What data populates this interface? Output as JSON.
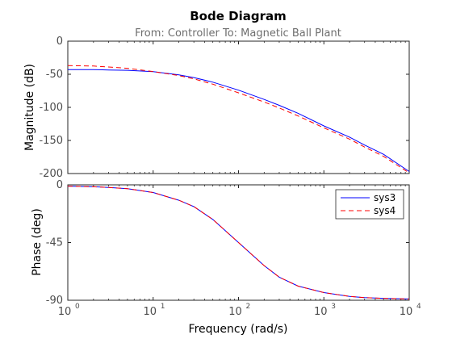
{
  "chart_data": {
    "type": "line",
    "title": "Bode Diagram",
    "subtitle": "From: Controller  To: Magnetic Ball Plant",
    "xlabel": "Frequency  (rad/s)",
    "xscale": "log",
    "xlim": [
      1,
      10000
    ],
    "x_ticks": [
      {
        "base": "10",
        "exp": "0"
      },
      {
        "base": "10",
        "exp": "1"
      },
      {
        "base": "10",
        "exp": "2"
      },
      {
        "base": "10",
        "exp": "3"
      },
      {
        "base": "10",
        "exp": "4"
      }
    ],
    "magnitude": {
      "ylabel": "Magnitude (dB)",
      "ylim": [
        -200,
        0
      ],
      "yticks": [
        "0",
        "-50",
        "-100",
        "-150",
        "-200"
      ],
      "series": [
        {
          "name": "sys3",
          "color": "#0000ff",
          "style": "solid",
          "x": [
            1,
            2,
            3,
            5,
            10,
            20,
            30,
            50,
            100,
            200,
            300,
            500,
            1000,
            2000,
            3000,
            5000,
            10000
          ],
          "y": [
            -43,
            -43,
            -43.5,
            -44,
            -46,
            -51,
            -55,
            -62,
            -74,
            -88,
            -97,
            -109,
            -128,
            -145,
            -157,
            -171,
            -197
          ]
        },
        {
          "name": "sys4",
          "color": "#ff0000",
          "style": "dashed",
          "x": [
            1,
            2,
            3,
            5,
            10,
            20,
            30,
            50,
            100,
            200,
            300,
            500,
            1000,
            2000,
            3000,
            5000,
            10000
          ],
          "y": [
            -37,
            -37.5,
            -39,
            -41,
            -46,
            -52,
            -57,
            -65,
            -78,
            -92,
            -101,
            -113,
            -131,
            -148,
            -160,
            -174,
            -199
          ]
        }
      ]
    },
    "phase": {
      "ylabel": "Phase (deg)",
      "ylim": [
        -90,
        0
      ],
      "yticks": [
        "0",
        "-45",
        "-90"
      ],
      "series": [
        {
          "name": "sys3",
          "color": "#0000ff",
          "style": "solid",
          "x": [
            1,
            2,
            3,
            5,
            10,
            20,
            30,
            50,
            100,
            200,
            300,
            500,
            1000,
            2000,
            3000,
            5000,
            10000
          ],
          "y": [
            -1,
            -1.5,
            -2,
            -3,
            -6,
            -12,
            -17,
            -27,
            -45,
            -63,
            -72,
            -79,
            -84,
            -87,
            -88,
            -88.5,
            -89
          ]
        },
        {
          "name": "sys4",
          "color": "#ff0000",
          "style": "dashed",
          "x": [
            1,
            2,
            3,
            5,
            10,
            20,
            30,
            50,
            100,
            200,
            300,
            500,
            1000,
            2000,
            3000,
            5000,
            10000
          ],
          "y": [
            -1,
            -1.5,
            -2,
            -3,
            -6,
            -12,
            -17,
            -27,
            -45,
            -63,
            -72,
            -79,
            -84,
            -87,
            -88,
            -88.5,
            -89
          ]
        }
      ],
      "legend": {
        "position": "top-right",
        "entries": [
          "sys3",
          "sys4"
        ]
      }
    }
  }
}
